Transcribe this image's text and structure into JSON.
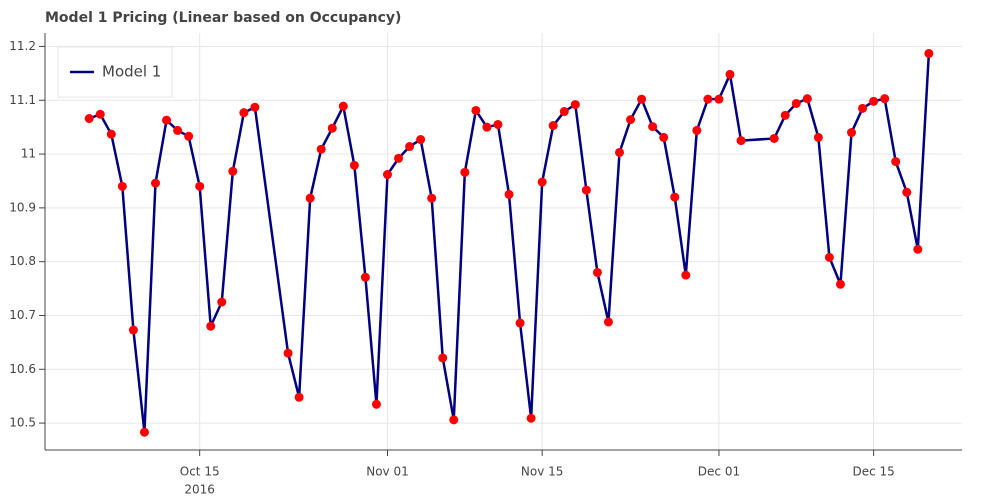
{
  "chart_data": {
    "type": "line",
    "title": "Model 1 Pricing (Linear based on Occupancy)",
    "x": [
      "2016-10-05",
      "2016-10-06",
      "2016-10-07",
      "2016-10-08",
      "2016-10-09",
      "2016-10-10",
      "2016-10-11",
      "2016-10-12",
      "2016-10-13",
      "2016-10-14",
      "2016-10-15",
      "2016-10-16",
      "2016-10-17",
      "2016-10-18",
      "2016-10-19",
      "2016-10-20",
      "2016-10-23",
      "2016-10-24",
      "2016-10-25",
      "2016-10-26",
      "2016-10-27",
      "2016-10-28",
      "2016-10-29",
      "2016-10-30",
      "2016-10-31",
      "2016-11-01",
      "2016-11-02",
      "2016-11-03",
      "2016-11-04",
      "2016-11-05",
      "2016-11-06",
      "2016-11-07",
      "2016-11-08",
      "2016-11-09",
      "2016-11-10",
      "2016-11-11",
      "2016-11-12",
      "2016-11-13",
      "2016-11-14",
      "2016-11-15",
      "2016-11-16",
      "2016-11-17",
      "2016-11-18",
      "2016-11-19",
      "2016-11-20",
      "2016-11-21",
      "2016-11-22",
      "2016-11-23",
      "2016-11-24",
      "2016-11-25",
      "2016-11-26",
      "2016-11-27",
      "2016-11-28",
      "2016-11-29",
      "2016-11-30",
      "2016-12-01",
      "2016-12-02",
      "2016-12-03",
      "2016-12-06",
      "2016-12-07",
      "2016-12-08",
      "2016-12-09",
      "2016-12-10",
      "2016-12-11",
      "2016-12-12",
      "2016-12-13",
      "2016-12-14",
      "2016-12-15",
      "2016-12-16",
      "2016-12-17",
      "2016-12-18",
      "2016-12-19",
      "2016-12-20"
    ],
    "series": [
      {
        "name": "Model 1",
        "color": "#000080",
        "marker_color": "#ff0000",
        "values": [
          11.066,
          11.074,
          11.037,
          10.94,
          10.673,
          10.483,
          10.946,
          11.063,
          11.044,
          11.033,
          10.94,
          10.68,
          10.725,
          10.968,
          11.077,
          11.087,
          10.63,
          10.548,
          10.918,
          11.009,
          11.048,
          11.089,
          10.979,
          10.771,
          10.535,
          10.962,
          10.992,
          11.014,
          11.027,
          10.918,
          10.621,
          10.506,
          10.966,
          11.081,
          11.05,
          11.055,
          10.925,
          10.686,
          10.509,
          10.948,
          11.053,
          11.079,
          11.092,
          10.933,
          10.78,
          10.688,
          11.003,
          11.064,
          11.102,
          11.051,
          11.031,
          10.92,
          10.775,
          11.044,
          11.102,
          11.102,
          11.148,
          11.025,
          11.029,
          11.072,
          11.094,
          11.103,
          11.031,
          10.808,
          10.758,
          11.04,
          11.085,
          11.098,
          11.103,
          10.986,
          10.929,
          10.823,
          11.187
        ]
      }
    ],
    "xlim": [
      "2016-10-01",
      "2016-12-23"
    ],
    "xticks": [
      {
        "value": "2016-10-15",
        "label": "Oct 15"
      },
      {
        "value": "2016-11-01",
        "label": "Nov 01"
      },
      {
        "value": "2016-11-15",
        "label": "Nov 15"
      },
      {
        "value": "2016-12-01",
        "label": "Dec 01"
      },
      {
        "value": "2016-12-15",
        "label": "Dec 15"
      }
    ],
    "x_year_label": "2016",
    "ylim": [
      10.45,
      11.225
    ],
    "yticks": [
      10.5,
      10.6,
      10.7,
      10.8,
      10.9,
      11,
      11.1,
      11.2
    ],
    "grid": true,
    "legend": "top-left"
  }
}
